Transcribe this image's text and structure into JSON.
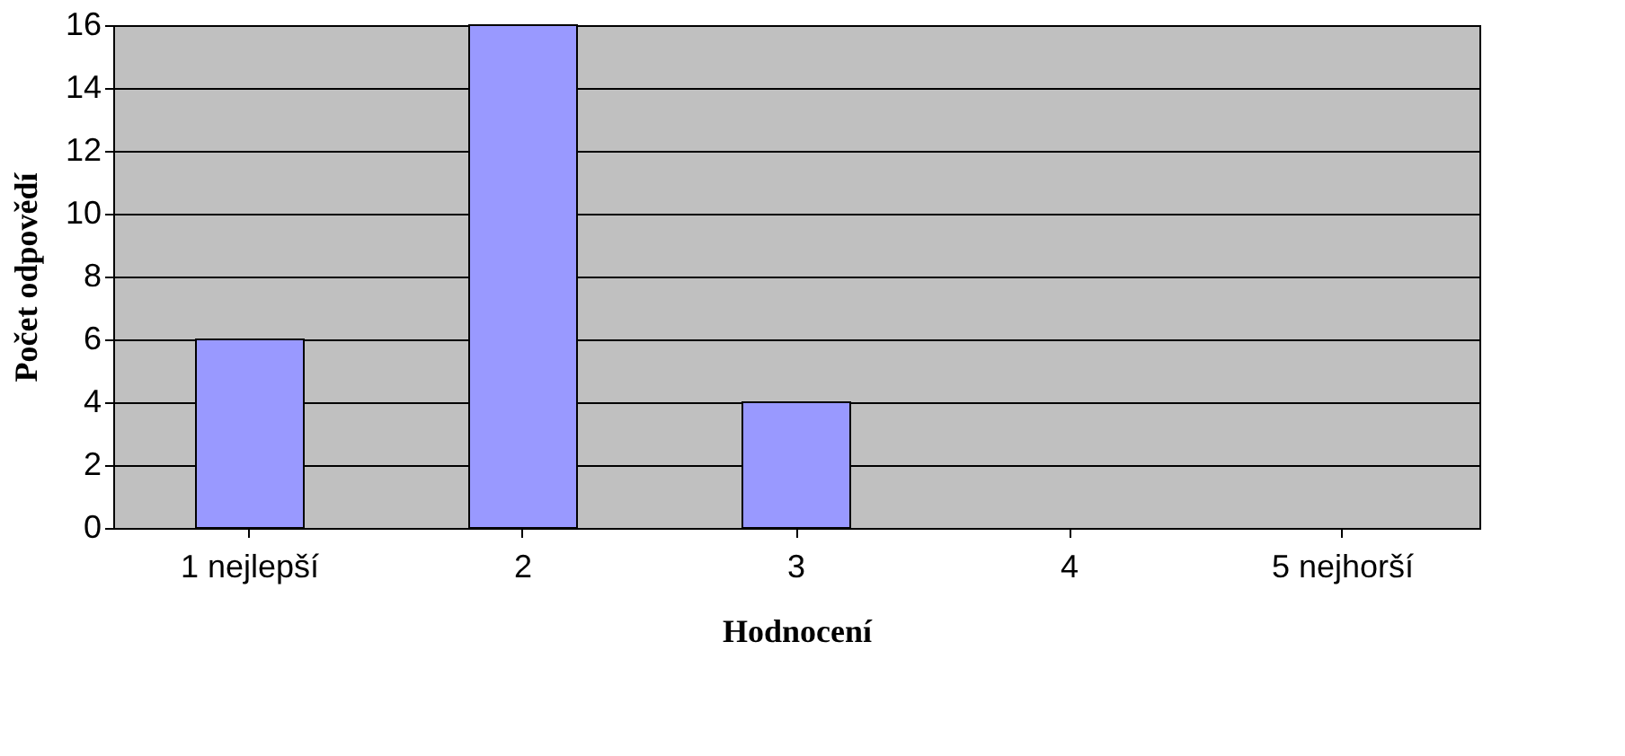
{
  "chart_data": {
    "type": "bar",
    "xlabel": "Hodnocení",
    "ylabel": "Počet odpovědí",
    "categories": [
      "1 nejlepší",
      "2",
      "3",
      "4",
      "5 nejhorší"
    ],
    "values": [
      6,
      16,
      4,
      0,
      0
    ],
    "color": "#9999ff",
    "ylim": [
      0,
      16
    ],
    "yticks": [
      0,
      2,
      4,
      6,
      8,
      10,
      12,
      14,
      16
    ],
    "grid": "y"
  }
}
